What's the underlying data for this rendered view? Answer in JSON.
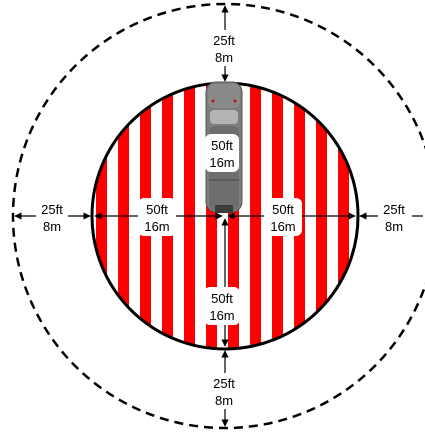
{
  "colors": {
    "stripe_red": "#ff0000",
    "stripe_white": "#ffffff",
    "outline": "#000000",
    "vehicle_body": "#7d7d7d",
    "vehicle_light": "#b4b4b4",
    "vehicle_dark": "#3c3c3c"
  },
  "labels": {
    "top_outer": [
      "25ft",
      "8m"
    ],
    "bottom_outer": [
      "25ft",
      "8m"
    ],
    "left_outer": [
      "25ft",
      "8m"
    ],
    "right_outer": [
      "25ft",
      "8m"
    ],
    "inner_top": [
      "50ft",
      "16m"
    ],
    "inner_left": [
      "50ft",
      "16m"
    ],
    "inner_right": [
      "50ft",
      "16m"
    ],
    "inner_bottom": [
      "50ft",
      "16m"
    ]
  },
  "zones": {
    "inner": "red-white striped hazard circle",
    "outer": "dashed perimeter circle"
  }
}
